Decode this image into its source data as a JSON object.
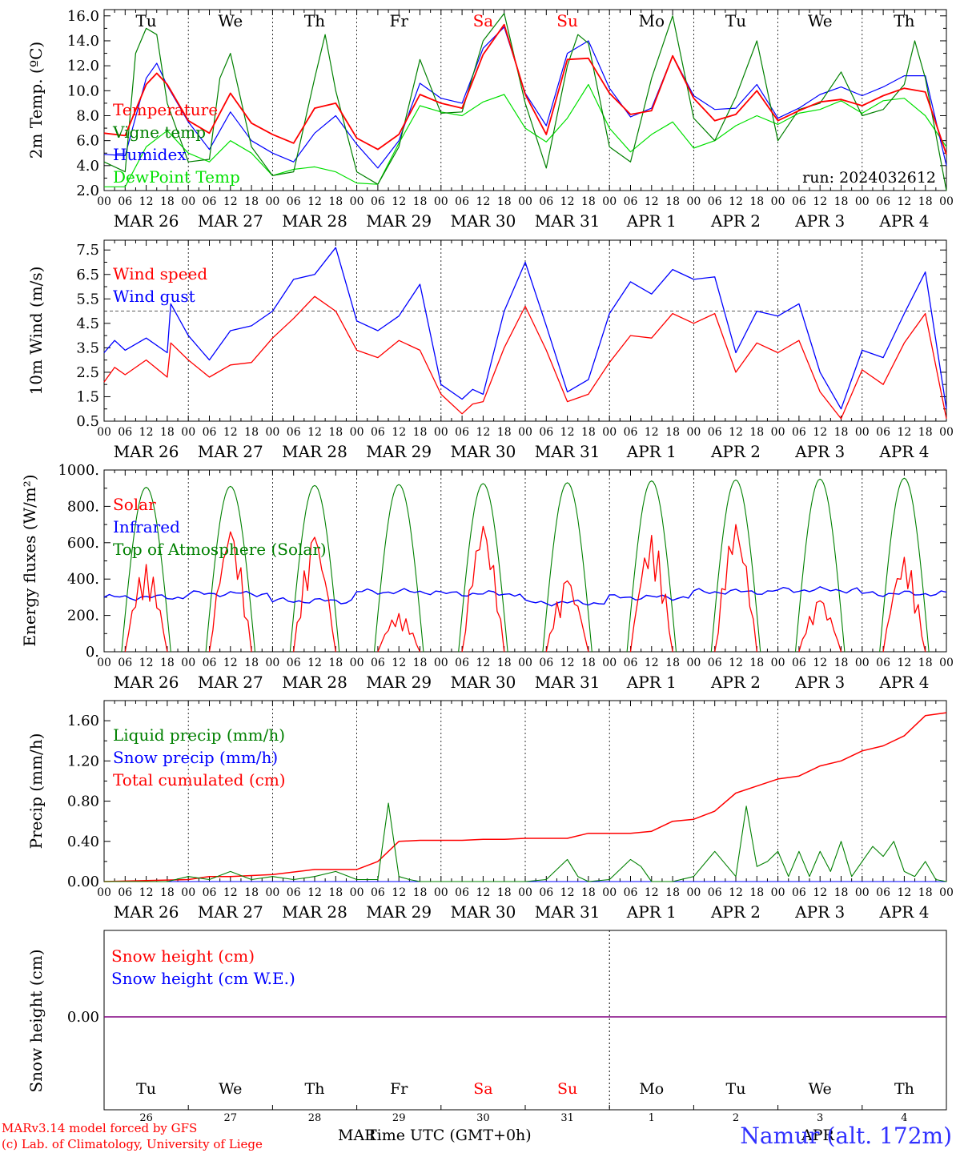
{
  "run_label": "run: 2024032612",
  "credits": [
    "MARv3.14 model forced by GFS",
    "(c) Lab. of Climatology, University of Liege"
  ],
  "station": "Namur (alt. 172m)",
  "time_axis_title": "Time UTC (GMT+0h)",
  "bottom_month_labels": [
    "MAR",
    "APR"
  ],
  "colors": {
    "red": "#ff0000",
    "green": "#008000",
    "lightgreen": "#00e000",
    "blue": "#0000ff",
    "purple": "#800080",
    "station": "#3030ff"
  },
  "days": [
    {
      "weekday": "Tu",
      "date": "MAR 26",
      "daynum": "26",
      "weekend": false
    },
    {
      "weekday": "We",
      "date": "MAR 27",
      "daynum": "27",
      "weekend": false
    },
    {
      "weekday": "Th",
      "date": "MAR 28",
      "daynum": "28",
      "weekend": false
    },
    {
      "weekday": "Fr",
      "date": "MAR 29",
      "daynum": "29",
      "weekend": false
    },
    {
      "weekday": "Sa",
      "date": "MAR 30",
      "daynum": "30",
      "weekend": true
    },
    {
      "weekday": "Su",
      "date": "MAR 31",
      "daynum": "31",
      "weekend": true
    },
    {
      "weekday": "Mo",
      "date": "APR  1",
      "daynum": "1",
      "weekend": false
    },
    {
      "weekday": "Tu",
      "date": "APR  2",
      "daynum": "2",
      "weekend": false
    },
    {
      "weekday": "We",
      "date": "APR  3",
      "daynum": "3",
      "weekend": false
    },
    {
      "weekday": "Th",
      "date": "APR  4",
      "daynum": "4",
      "weekend": false
    }
  ],
  "hour_labels": [
    "00",
    "06",
    "12",
    "18"
  ],
  "chart_data": [
    {
      "type": "line",
      "ylabel": "2m Temp. (ºC)",
      "ylim": [
        2,
        16.5
      ],
      "yticks": [
        "2.0",
        "4.0",
        "6.0",
        "8.0",
        "10.0",
        "12.0",
        "14.0",
        "16.0"
      ],
      "x_unit": "hours since 2024-03-26 00 UTC",
      "x_range": [
        0,
        240
      ],
      "series": [
        {
          "name": "Temperature",
          "color": "red",
          "x": [
            0,
            6,
            12,
            15,
            18,
            24,
            30,
            36,
            42,
            48,
            54,
            60,
            66,
            72,
            78,
            84,
            90,
            96,
            102,
            108,
            114,
            120,
            126,
            132,
            138,
            144,
            150,
            156,
            162,
            168,
            174,
            180,
            186,
            192,
            198,
            204,
            210,
            216,
            222,
            228,
            234,
            240
          ],
          "y": [
            6.6,
            6.4,
            10.5,
            11.4,
            10.5,
            7.6,
            6.6,
            9.8,
            7.4,
            6.5,
            5.8,
            8.6,
            9.0,
            6.2,
            5.3,
            6.5,
            9.7,
            9.0,
            8.6,
            12.9,
            15.3,
            9.7,
            6.5,
            12.5,
            12.6,
            9.8,
            8.1,
            8.4,
            12.8,
            9.4,
            7.6,
            8.1,
            10.0,
            7.6,
            8.4,
            9.1,
            9.3,
            8.8,
            9.6,
            10.2,
            9.9,
            4.9
          ]
        },
        {
          "name": "Vigne temp",
          "color": "green",
          "x": [
            0,
            6,
            9,
            12,
            15,
            18,
            24,
            30,
            33,
            36,
            42,
            48,
            54,
            60,
            63,
            66,
            72,
            78,
            84,
            90,
            96,
            102,
            108,
            114,
            120,
            126,
            132,
            135,
            138,
            144,
            150,
            156,
            162,
            168,
            174,
            180,
            186,
            192,
            198,
            204,
            210,
            216,
            222,
            228,
            231,
            234,
            240
          ],
          "y": [
            4.3,
            3.5,
            13.0,
            15.0,
            14.5,
            9.0,
            4.3,
            4.5,
            11.0,
            13.0,
            5.5,
            3.2,
            3.5,
            11.0,
            14.5,
            10.0,
            3.5,
            2.5,
            5.5,
            12.5,
            8.2,
            8.3,
            14.0,
            16.2,
            9.0,
            3.8,
            12.0,
            14.5,
            13.8,
            5.5,
            4.3,
            11.0,
            16.0,
            7.8,
            6.0,
            9.5,
            14.0,
            6.0,
            8.5,
            9.0,
            11.5,
            8.0,
            8.5,
            10.5,
            14.0,
            11.0,
            2.0
          ]
        },
        {
          "name": "Humidex",
          "color": "blue",
          "x": [
            0,
            6,
            12,
            15,
            18,
            24,
            30,
            36,
            42,
            48,
            54,
            60,
            66,
            72,
            78,
            84,
            90,
            96,
            102,
            108,
            114,
            120,
            126,
            132,
            138,
            144,
            150,
            156,
            162,
            168,
            174,
            180,
            186,
            192,
            198,
            204,
            210,
            216,
            222,
            228,
            234,
            240
          ],
          "y": [
            4.9,
            4.8,
            11.0,
            12.2,
            10.4,
            7.5,
            5.3,
            8.3,
            6.0,
            5.0,
            4.3,
            6.6,
            8.0,
            5.7,
            3.8,
            6.0,
            10.6,
            9.4,
            9.0,
            13.4,
            15.1,
            9.8,
            7.2,
            13.0,
            14.0,
            10.2,
            7.9,
            8.6,
            12.8,
            9.6,
            8.5,
            8.6,
            10.5,
            7.8,
            8.6,
            9.7,
            10.3,
            9.6,
            10.3,
            11.2,
            11.2,
            4.0
          ]
        },
        {
          "name": "DewPoint Temp",
          "color": "lightgreen",
          "x": [
            0,
            6,
            12,
            18,
            24,
            30,
            36,
            42,
            48,
            54,
            60,
            66,
            72,
            78,
            84,
            90,
            96,
            102,
            108,
            114,
            120,
            126,
            132,
            138,
            144,
            150,
            156,
            162,
            168,
            174,
            180,
            186,
            192,
            198,
            204,
            210,
            216,
            222,
            228,
            234,
            240
          ],
          "y": [
            2.3,
            2.3,
            5.5,
            6.8,
            5.0,
            4.3,
            6.0,
            5.0,
            3.2,
            3.7,
            3.9,
            3.5,
            2.6,
            2.5,
            5.8,
            8.8,
            8.3,
            8.0,
            9.1,
            9.7,
            7.0,
            5.9,
            7.8,
            10.5,
            7.0,
            5.1,
            6.5,
            7.5,
            5.4,
            6.0,
            7.2,
            8.0,
            7.3,
            8.2,
            8.5,
            9.2,
            8.2,
            9.2,
            9.4,
            8.0,
            5.5
          ]
        }
      ],
      "legend": [
        "Temperature",
        "Vigne temp",
        "Humidex",
        "DewPoint Temp"
      ]
    },
    {
      "type": "line",
      "ylabel": "10m Wind (m/s)",
      "ylim": [
        0.5,
        7.9
      ],
      "yticks": [
        "0.5",
        "1.5",
        "2.5",
        "3.5",
        "4.5",
        "5.5",
        "6.5",
        "7.5"
      ],
      "reference_line": 5.0,
      "x_range": [
        0,
        240
      ],
      "series": [
        {
          "name": "Wind speed",
          "color": "red",
          "x": [
            0,
            3,
            6,
            12,
            18,
            19,
            24,
            30,
            36,
            42,
            48,
            54,
            60,
            66,
            72,
            78,
            84,
            90,
            96,
            102,
            105,
            108,
            114,
            120,
            126,
            132,
            138,
            144,
            150,
            156,
            162,
            168,
            174,
            180,
            186,
            192,
            198,
            204,
            210,
            216,
            222,
            228,
            234,
            240
          ],
          "y": [
            2.1,
            2.7,
            2.4,
            3.0,
            2.3,
            3.7,
            3.0,
            2.3,
            2.8,
            2.9,
            3.9,
            4.7,
            5.6,
            5.0,
            3.4,
            3.1,
            3.8,
            3.4,
            1.6,
            0.8,
            1.2,
            1.3,
            3.5,
            5.2,
            3.4,
            1.3,
            1.6,
            2.9,
            4.0,
            3.9,
            4.9,
            4.5,
            4.9,
            2.5,
            3.7,
            3.3,
            3.8,
            1.7,
            0.6,
            2.6,
            2.0,
            3.7,
            4.9,
            0.6
          ]
        },
        {
          "name": "Wind gust",
          "color": "blue",
          "x": [
            0,
            3,
            6,
            12,
            18,
            19,
            24,
            30,
            36,
            42,
            48,
            54,
            60,
            66,
            72,
            78,
            84,
            90,
            96,
            102,
            105,
            108,
            114,
            120,
            126,
            132,
            138,
            144,
            150,
            156,
            162,
            168,
            174,
            180,
            186,
            192,
            198,
            204,
            210,
            216,
            222,
            228,
            234,
            240
          ],
          "y": [
            3.3,
            3.8,
            3.4,
            3.9,
            3.3,
            5.3,
            4.0,
            3.0,
            4.2,
            4.4,
            5.0,
            6.3,
            6.5,
            7.6,
            4.6,
            4.2,
            4.8,
            6.1,
            2.0,
            1.4,
            1.8,
            1.6,
            5.0,
            7.0,
            4.4,
            1.7,
            2.2,
            4.9,
            6.2,
            5.7,
            6.7,
            6.3,
            6.4,
            3.3,
            5.0,
            4.8,
            5.3,
            2.5,
            1.0,
            3.4,
            3.1,
            4.9,
            6.6,
            1.0
          ]
        }
      ],
      "legend": [
        "Wind speed",
        "Wind gust"
      ]
    },
    {
      "type": "line",
      "ylabel": "Energy fluxes (W/m²)",
      "ylim": [
        0,
        1000
      ],
      "yticks": [
        "0.",
        "200.",
        "400.",
        "600.",
        "800.",
        "1000."
      ],
      "x_range": [
        0,
        240
      ],
      "series": [
        {
          "name": "Solar",
          "color": "red",
          "peaks": [
            480,
            660,
            630,
            210,
            690,
            390,
            640,
            700,
            280,
            520
          ]
        },
        {
          "name": "Infrared",
          "color": "blue",
          "baseline": [
            300,
            320,
            280,
            330,
            320,
            270,
            300,
            330,
            340,
            320
          ]
        },
        {
          "name": "Top of Atmosphere (Solar)",
          "color": "green",
          "peaks": [
            905,
            910,
            915,
            920,
            925,
            930,
            940,
            945,
            950,
            955
          ]
        }
      ],
      "legend": [
        "Solar",
        "Infrared",
        "Top of Atmosphere (Solar)"
      ]
    },
    {
      "type": "line",
      "ylabel": "Precip (mm/h)",
      "ylim": [
        0,
        1.8
      ],
      "yticks": [
        "0.00",
        "0.40",
        "0.80",
        "1.20",
        "1.60"
      ],
      "x_range": [
        0,
        240
      ],
      "series": [
        {
          "name": "Liquid precip (mm/h)",
          "color": "green",
          "x": [
            0,
            18,
            24,
            30,
            36,
            42,
            48,
            54,
            60,
            66,
            72,
            78,
            81,
            84,
            87,
            90,
            96,
            102,
            108,
            114,
            120,
            126,
            132,
            135,
            138,
            144,
            150,
            153,
            156,
            159,
            162,
            168,
            174,
            180,
            183,
            186,
            189,
            192,
            195,
            198,
            201,
            204,
            207,
            210,
            213,
            216,
            219,
            222,
            225,
            228,
            231,
            234,
            237,
            240
          ],
          "y": [
            0,
            0,
            0.05,
            0.02,
            0.1,
            0.02,
            0.05,
            0.02,
            0.05,
            0.1,
            0.02,
            0.02,
            0.78,
            0.05,
            0.02,
            0,
            0,
            0,
            0,
            0,
            0,
            0.02,
            0.22,
            0.05,
            0,
            0.02,
            0.22,
            0.15,
            0,
            0,
            0,
            0.05,
            0.3,
            0.05,
            0.75,
            0.15,
            0.2,
            0.3,
            0.05,
            0.3,
            0.05,
            0.3,
            0.1,
            0.4,
            0.05,
            0.2,
            0.35,
            0.25,
            0.4,
            0.1,
            0.05,
            0.2,
            0.02,
            0
          ]
        },
        {
          "name": "Snow precip (mm/h)",
          "color": "blue",
          "x": [
            0,
            240
          ],
          "y": [
            0,
            0
          ]
        },
        {
          "name": "Total cumulated (cm)",
          "color": "red",
          "x": [
            0,
            24,
            30,
            36,
            48,
            60,
            72,
            78,
            84,
            90,
            96,
            102,
            108,
            114,
            120,
            126,
            132,
            138,
            144,
            150,
            156,
            162,
            168,
            174,
            180,
            186,
            192,
            198,
            204,
            210,
            216,
            222,
            228,
            234,
            240
          ],
          "y": [
            0.0,
            0.02,
            0.05,
            0.05,
            0.07,
            0.12,
            0.12,
            0.2,
            0.4,
            0.41,
            0.41,
            0.41,
            0.42,
            0.42,
            0.43,
            0.43,
            0.43,
            0.48,
            0.48,
            0.48,
            0.5,
            0.6,
            0.62,
            0.7,
            0.88,
            0.95,
            1.02,
            1.05,
            1.15,
            1.2,
            1.3,
            1.35,
            1.45,
            1.65,
            1.68
          ]
        }
      ],
      "legend": [
        "Liquid precip (mm/h)",
        "Snow precip (mm/h)",
        "Total cumulated (cm)"
      ]
    },
    {
      "type": "line",
      "ylabel": "Snow height (cm)",
      "yticks": [
        "0.00"
      ],
      "x_range": [
        0,
        240
      ],
      "series": [
        {
          "name": "Snow height (cm)",
          "color": "red",
          "x": [
            0,
            240
          ],
          "y": [
            0,
            0
          ]
        },
        {
          "name": "Snow height (cm W.E.)",
          "color": "blue",
          "x": [
            0,
            240
          ],
          "y": [
            0,
            0
          ]
        }
      ],
      "legend": [
        "Snow height (cm)",
        "Snow height (cm W.E.)"
      ]
    }
  ]
}
